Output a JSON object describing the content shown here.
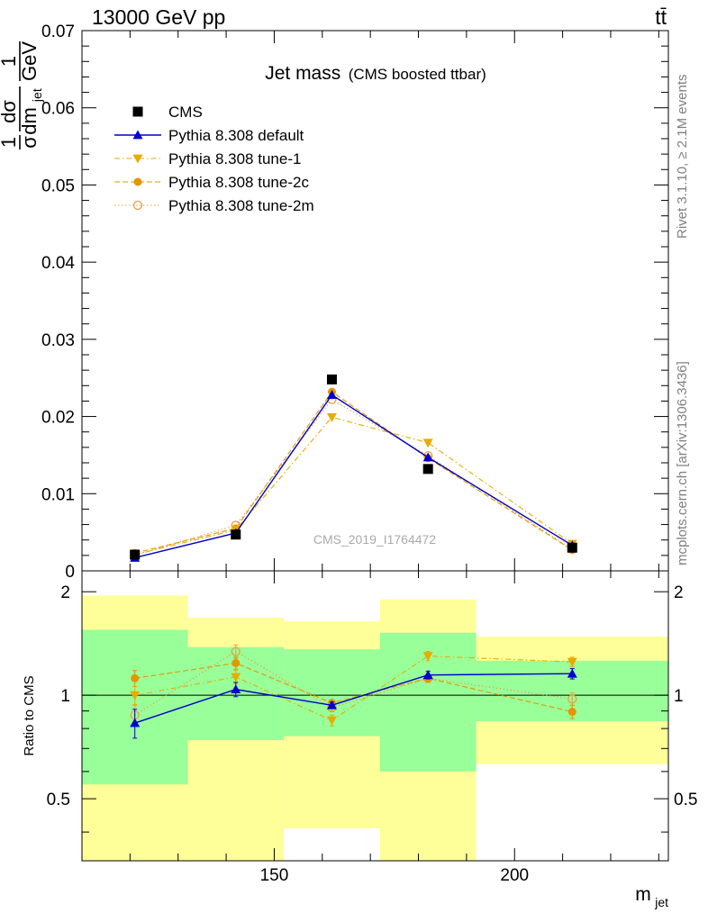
{
  "header": {
    "energy_label": "13000 GeV pp",
    "process_label": "tt̄"
  },
  "plot": {
    "title_main": "Jet mass",
    "title_sub": "(CMS boosted ttbar)",
    "ylabel_frac_num": "1",
    "ylabel_frac_den": "σ",
    "ylabel_d_num": "dσ",
    "ylabel_d_den": "dm",
    "ylabel_d_den_sub": "jet",
    "ylabel_unit_num": "1",
    "ylabel_unit_den": "GeV",
    "watermark": "CMS_2019_I1764472",
    "side_label_top": "Rivet 3.1.10, ≥ 2.1M events",
    "side_label_bottom": "mcplots.cern.ch [arXiv:1306.3436]",
    "ratio_ylabel": "Ratio to CMS",
    "xlabel": "m",
    "xlabel_sub": "jet"
  },
  "colors": {
    "data": "#000000",
    "default": "#0000cc",
    "tune1": "#e6ac00",
    "tune2c": "#e69500",
    "tune2m": "#e6a040",
    "band_inner": "#99ff99",
    "band_outer": "#ffff99"
  },
  "chart_data": {
    "type": "line",
    "bins": [
      [
        110,
        132
      ],
      [
        132,
        152
      ],
      [
        152,
        172
      ],
      [
        172,
        192
      ],
      [
        192,
        232
      ]
    ],
    "x": [
      121,
      142,
      162,
      182,
      212
    ],
    "xlim": [
      110,
      232
    ],
    "ylim": [
      0,
      0.07
    ],
    "ratio_ylim": [
      0.33,
      2.3
    ],
    "xticks": [
      150,
      200
    ],
    "yticks": [
      {
        "v": 0,
        "label": "0"
      },
      {
        "v": 0.01,
        "label": "0.01"
      },
      {
        "v": 0.02,
        "label": "0.02"
      },
      {
        "v": 0.03,
        "label": "0.03"
      },
      {
        "v": 0.04,
        "label": "0.04"
      },
      {
        "v": 0.05,
        "label": "0.05"
      },
      {
        "v": 0.06,
        "label": "0.06"
      },
      {
        "v": 0.07,
        "label": "0.07"
      }
    ],
    "ratio_yticks": [
      {
        "v": 0.5,
        "label": "0.5"
      },
      {
        "v": 1,
        "label": "1"
      },
      {
        "v": 2,
        "label": "2"
      }
    ],
    "data_series": {
      "name": "CMS",
      "values": [
        0.0021,
        0.0047,
        0.0248,
        0.0132,
        0.003
      ]
    },
    "bands": {
      "inner": [
        [
          0.55,
          1.55
        ],
        [
          0.74,
          1.38
        ],
        [
          0.76,
          1.36
        ],
        [
          0.6,
          1.52
        ],
        [
          0.84,
          1.26
        ]
      ],
      "outer": [
        [
          0.3,
          1.95
        ],
        [
          0.3,
          1.68
        ],
        [
          0.41,
          1.64
        ],
        [
          0.3,
          1.9
        ],
        [
          0.63,
          1.48
        ]
      ]
    },
    "series": [
      {
        "name": "Pythia 8.308 default",
        "key": "default",
        "marker": "triangle-up",
        "dash": "",
        "values": [
          0.0017,
          0.0049,
          0.0228,
          0.0147,
          0.0033
        ],
        "ratio": [
          0.83,
          1.04,
          0.935,
          1.145,
          1.155
        ],
        "ratio_err": [
          0.08,
          0.05,
          0.02,
          0.03,
          0.04
        ]
      },
      {
        "name": "Pythia 8.308 tune-1",
        "key": "tune1",
        "marker": "triangle-down",
        "dash": "6,3,1.5,3",
        "values": [
          0.0021,
          0.0053,
          0.0199,
          0.0166,
          0.0035
        ],
        "ratio": [
          1.0,
          1.13,
          0.845,
          1.3,
          1.25
        ],
        "ratio_err": [
          0.06,
          0.05,
          0.03,
          0.04,
          0.04
        ]
      },
      {
        "name": "Pythia 8.308 tune-2c",
        "key": "tune2c",
        "marker": "circle",
        "dash": "6,3",
        "values": [
          0.0023,
          0.0055,
          0.0232,
          0.0146,
          0.0027
        ],
        "ratio": [
          1.12,
          1.24,
          0.95,
          1.12,
          0.895
        ],
        "ratio_err": [
          0.06,
          0.05,
          0.02,
          0.03,
          0.04
        ]
      },
      {
        "name": "Pythia 8.308 tune-2m",
        "key": "tune2m",
        "marker": "circle-open",
        "dash": "1.5,2.5",
        "values": [
          0.002,
          0.0059,
          0.0222,
          0.0149,
          0.0028
        ],
        "ratio": [
          0.875,
          1.34,
          0.92,
          1.12,
          0.975
        ],
        "ratio_err": [
          0.06,
          0.06,
          0.02,
          0.03,
          0.04
        ]
      }
    ],
    "legend": [
      "CMS",
      "Pythia 8.308 default",
      "Pythia 8.308 tune-1",
      "Pythia 8.308 tune-2c",
      "Pythia 8.308 tune-2m"
    ],
    "legend_position": "top-left"
  }
}
